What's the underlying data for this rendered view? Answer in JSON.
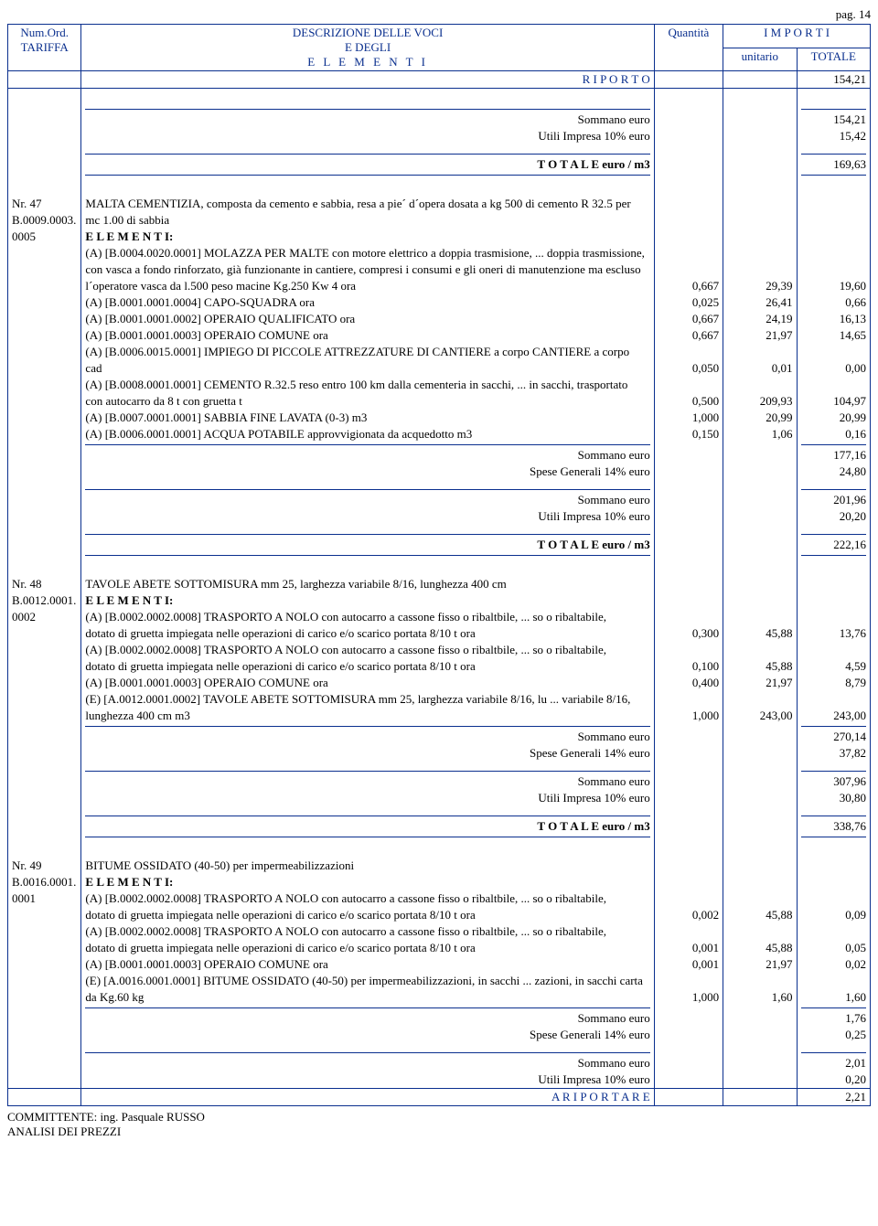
{
  "page_label": "pag. 14",
  "header": {
    "col1_line1": "Num.Ord.",
    "col1_line2": "TARIFFA",
    "col2_line1": "DESCRIZIONE DELLE VOCI",
    "col2_line2": "E DEGLI",
    "col2_line3": "E L E M E N T I",
    "col3": "Quantità",
    "col4_group": "I M P O R T I",
    "col4a": "unitario",
    "col4b": "TOTALE"
  },
  "riporto": {
    "label": "R I P O R T O",
    "total": "154,21"
  },
  "block_top": {
    "sommano": "Sommano euro",
    "sommano_val": "154,21",
    "utili": "Utili Impresa 10% euro",
    "utili_val": "15,42",
    "totale": "T O T A L E  euro / m3",
    "totale_val": "169,63"
  },
  "item47": {
    "id_line1": "Nr. 47",
    "id_line2": "B.0009.0003.",
    "id_line3": "0005",
    "title1": "MALTA CEMENTIZIA, composta da cemento e sabbia, resa a pie´ d´opera dosata a kg 500 di cemento R 32.5 per",
    "title2": "mc 1.00 di sabbia",
    "elem": "E L E M E N T I:",
    "rows": [
      {
        "desc": "(A) [B.0004.0020.0001] MOLAZZA PER MALTE con motore elettrico a doppia trasmisione, ... doppia trasmissione,",
        "q": "",
        "u": "",
        "t": ""
      },
      {
        "desc": "con vasca a fondo rinforzato, già funzionante in cantiere, compresi i consumi e gli oneri di manutenzione ma escluso",
        "q": "",
        "u": "",
        "t": ""
      },
      {
        "desc": "l´operatore vasca da l.500 peso macine Kg.250 Kw 4 ora",
        "q": "0,667",
        "u": "29,39",
        "t": "19,60"
      },
      {
        "desc": "(A) [B.0001.0001.0004] CAPO-SQUADRA ora",
        "q": "0,025",
        "u": "26,41",
        "t": "0,66"
      },
      {
        "desc": "(A) [B.0001.0001.0002] OPERAIO QUALIFICATO ora",
        "q": "0,667",
        "u": "24,19",
        "t": "16,13"
      },
      {
        "desc": "(A) [B.0001.0001.0003] OPERAIO COMUNE ora",
        "q": "0,667",
        "u": "21,97",
        "t": "14,65"
      },
      {
        "desc": "(A) [B.0006.0015.0001] IMPIEGO DI PICCOLE ATTREZZATURE DI CANTIERE a corpo CANTIERE a corpo",
        "q": "",
        "u": "",
        "t": ""
      },
      {
        "desc": "cad",
        "q": "0,050",
        "u": "0,01",
        "t": "0,00"
      },
      {
        "desc": "(A) [B.0008.0001.0001] CEMENTO R.32.5 reso entro 100 km dalla cementeria in sacchi, ... in sacchi, trasportato",
        "q": "",
        "u": "",
        "t": ""
      },
      {
        "desc": "con autocarro da 8 t con gruetta t",
        "q": "0,500",
        "u": "209,93",
        "t": "104,97"
      },
      {
        "desc": "(A) [B.0007.0001.0001] SABBIA FINE LAVATA (0-3) m3",
        "q": "1,000",
        "u": "20,99",
        "t": "20,99"
      },
      {
        "desc": "(A) [B.0006.0001.0001] ACQUA POTABILE approvvigionata da acquedotto m3",
        "q": "0,150",
        "u": "1,06",
        "t": "0,16"
      }
    ],
    "s1": "Sommano euro",
    "s1v": "177,16",
    "s2": "Spese Generali 14% euro",
    "s2v": "24,80",
    "s3": "Sommano euro",
    "s3v": "201,96",
    "s4": "Utili Impresa 10% euro",
    "s4v": "20,20",
    "tot": "T O T A L E  euro / m3",
    "totv": "222,16"
  },
  "item48": {
    "id_line1": "Nr. 48",
    "id_line2": "B.0012.0001.",
    "id_line3": "0002",
    "title1": "TAVOLE ABETE SOTTOMISURA mm 25, larghezza variabile 8/16, lunghezza 400 cm",
    "elem": "E L E M E N T I:",
    "rows": [
      {
        "desc": "(A) [B.0002.0002.0008] TRASPORTO A NOLO con autocarro a cassone fisso o ribaltbile, ... so    o    ribaltabile,",
        "q": "",
        "u": "",
        "t": ""
      },
      {
        "desc": "dotato   di   gruetta   impiegata   nelle operazioni di carico e/o scarico portata 8/10 t ora",
        "q": "0,300",
        "u": "45,88",
        "t": "13,76"
      },
      {
        "desc": "(A) [B.0002.0002.0008] TRASPORTO A NOLO con autocarro a cassone fisso o ribaltbile, ... so    o    ribaltabile,",
        "q": "",
        "u": "",
        "t": ""
      },
      {
        "desc": "dotato   di   gruetta   impiegata   nelle operazioni di carico e/o scarico portata 8/10 t ora",
        "q": "0,100",
        "u": "45,88",
        "t": "4,59"
      },
      {
        "desc": "(A) [B.0001.0001.0003] OPERAIO COMUNE ora",
        "q": "0,400",
        "u": "21,97",
        "t": "8,79"
      },
      {
        "desc": "(E) [A.0012.0001.0002] TAVOLE ABETE SOTTOMISURA mm 25, larghezza variabile 8/16, lu ... variabile 8/16,",
        "q": "",
        "u": "",
        "t": ""
      },
      {
        "desc": "lunghezza 400 cm m3",
        "q": "1,000",
        "u": "243,00",
        "t": "243,00"
      }
    ],
    "s1": "Sommano euro",
    "s1v": "270,14",
    "s2": "Spese Generali 14% euro",
    "s2v": "37,82",
    "s3": "Sommano euro",
    "s3v": "307,96",
    "s4": "Utili Impresa 10% euro",
    "s4v": "30,80",
    "tot": "T O T A L E  euro / m3",
    "totv": "338,76"
  },
  "item49": {
    "id_line1": "Nr. 49",
    "id_line2": "B.0016.0001.",
    "id_line3": "0001",
    "title1": "BITUME OSSIDATO (40-50) per impermeabilizzazioni",
    "elem": "E L E M E N T I:",
    "rows": [
      {
        "desc": "(A) [B.0002.0002.0008] TRASPORTO A NOLO con autocarro a cassone fisso o ribaltbile, ... so    o    ribaltabile,",
        "q": "",
        "u": "",
        "t": ""
      },
      {
        "desc": "dotato   di   gruetta   impiegata   nelle operazioni di carico e/o scarico portata 8/10 t ora",
        "q": "0,002",
        "u": "45,88",
        "t": "0,09"
      },
      {
        "desc": "(A) [B.0002.0002.0008] TRASPORTO A NOLO con autocarro a cassone fisso o ribaltbile, ... so    o    ribaltabile,",
        "q": "",
        "u": "",
        "t": ""
      },
      {
        "desc": "dotato   di   gruetta   impiegata   nelle operazioni di carico e/o scarico portata 8/10 t ora",
        "q": "0,001",
        "u": "45,88",
        "t": "0,05"
      },
      {
        "desc": "(A) [B.0001.0001.0003] OPERAIO COMUNE ora",
        "q": "0,001",
        "u": "21,97",
        "t": "0,02"
      },
      {
        "desc": "(E) [A.0016.0001.0001] BITUME OSSIDATO (40-50) per impermeabilizzazioni, in sacchi  ... zazioni, in sacchi carta",
        "q": "",
        "u": "",
        "t": ""
      },
      {
        "desc": "da Kg.60 kg",
        "q": "1,000",
        "u": "1,60",
        "t": "1,60"
      }
    ],
    "s1": "Sommano euro",
    "s1v": "1,76",
    "s2": "Spese Generali 14% euro",
    "s2v": "0,25",
    "s3": "Sommano euro",
    "s3v": "2,01",
    "s4": "Utili Impresa 10% euro",
    "s4v": "0,20"
  },
  "a_riportare": {
    "label": "A   R I P O R T A R E",
    "total": "2,21"
  },
  "footer": {
    "line1": "COMMITTENTE: ing. Pasquale RUSSO",
    "line2": "ANALISI DEI PREZZI"
  }
}
